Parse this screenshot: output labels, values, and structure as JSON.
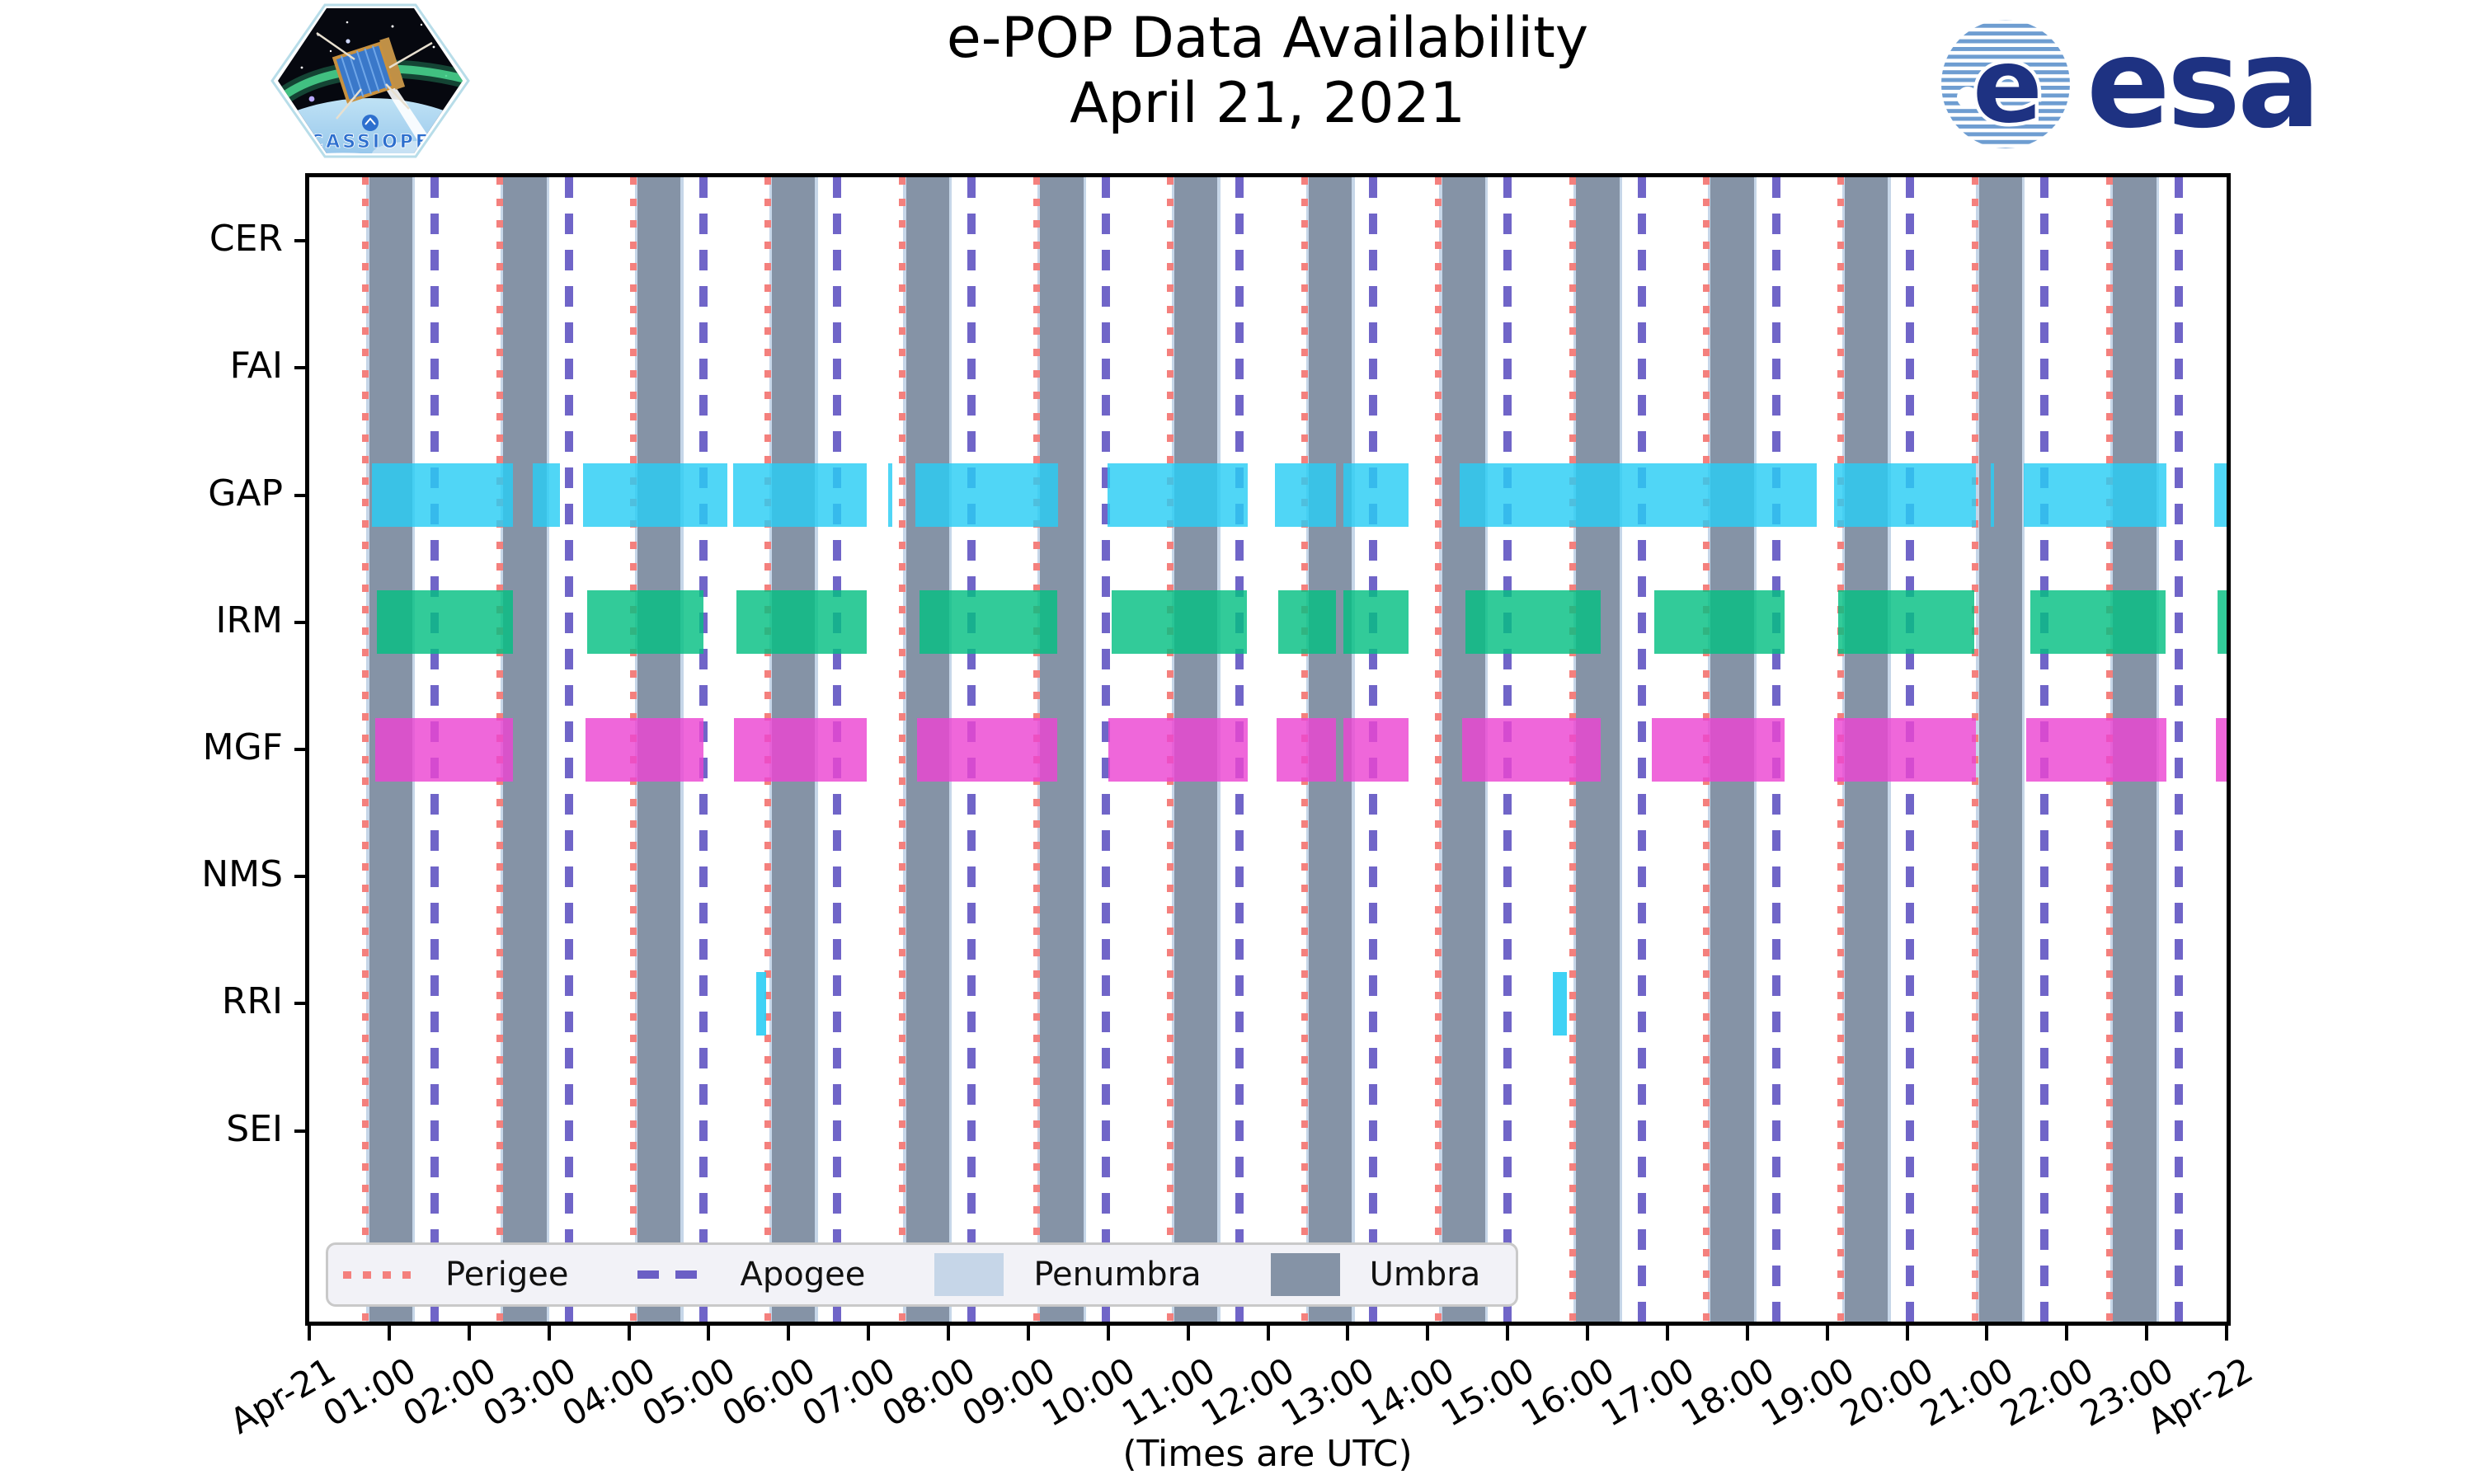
{
  "header": {
    "title_line1": "e-POP Data Availability",
    "title_line2": "April 21, 2021",
    "patch_text": "CASSIOPE",
    "esa_text": "esa"
  },
  "chart_data": {
    "type": "timeline-availability",
    "title": "e-POP Data Availability",
    "subtitle": "April 21, 2021",
    "xlabel": "(Times are UTC)",
    "x_axis_range_hours": [
      0,
      24
    ],
    "x_start_hours": 0,
    "x_end_hours": 24,
    "x_tick_labels": [
      "Apr-21",
      "01:00",
      "02:00",
      "03:00",
      "04:00",
      "05:00",
      "06:00",
      "07:00",
      "08:00",
      "09:00",
      "10:00",
      "11:00",
      "12:00",
      "13:00",
      "14:00",
      "15:00",
      "16:00",
      "17:00",
      "18:00",
      "19:00",
      "20:00",
      "21:00",
      "22:00",
      "23:00",
      "Apr-22"
    ],
    "x_tick_label_rotation_deg": 30,
    "instruments": [
      "CER",
      "FAI",
      "GAP",
      "IRM",
      "MGF",
      "NMS",
      "RRI",
      "SEI"
    ],
    "legend_location": "bottom-left-inside-plot",
    "colors": {
      "umbra": "#8593A6",
      "penumbra": "#C6D6E8",
      "perigee": "#F4807D",
      "apogee": "rgba(100,88,195,0.92)",
      "axis": "#000000",
      "legend_bg": "#F2F2F7"
    },
    "series": [
      {
        "name": "CER",
        "color": "",
        "segments_hours": []
      },
      {
        "name": "FAI",
        "color": "",
        "segments_hours": []
      },
      {
        "name": "GAP",
        "color": "rgba(42,205,244,0.82)",
        "segments_hours": [
          [
            0.78,
            2.55
          ],
          [
            2.8,
            3.14
          ],
          [
            3.43,
            5.23
          ],
          [
            5.31,
            6.98
          ],
          [
            7.25,
            7.3
          ],
          [
            7.59,
            9.37
          ],
          [
            9.99,
            11.75
          ],
          [
            12.09,
            12.85
          ],
          [
            12.94,
            13.76
          ],
          [
            14.4,
            18.87
          ],
          [
            19.09,
            20.86
          ],
          [
            21.05,
            21.09
          ],
          [
            21.46,
            23.25
          ],
          [
            23.84,
            24.0
          ]
        ]
      },
      {
        "name": "IRM",
        "color": "rgba(5,192,130,0.82)",
        "segments_hours": [
          [
            0.85,
            2.55
          ],
          [
            3.48,
            4.93
          ],
          [
            5.35,
            6.98
          ],
          [
            7.64,
            9.36
          ],
          [
            10.04,
            11.74
          ],
          [
            12.13,
            12.85
          ],
          [
            12.94,
            13.76
          ],
          [
            14.47,
            16.17
          ],
          [
            16.84,
            18.47
          ],
          [
            19.14,
            20.84
          ],
          [
            21.54,
            23.24
          ],
          [
            23.89,
            24.0
          ]
        ]
      },
      {
        "name": "MGF",
        "color": "rgba(235,70,210,0.82)",
        "segments_hours": [
          [
            0.83,
            2.55
          ],
          [
            3.46,
            4.93
          ],
          [
            5.32,
            6.98
          ],
          [
            7.61,
            9.36
          ],
          [
            10.0,
            11.75
          ],
          [
            12.11,
            12.85
          ],
          [
            12.94,
            13.76
          ],
          [
            14.43,
            16.17
          ],
          [
            16.81,
            18.47
          ],
          [
            19.09,
            20.86
          ],
          [
            21.49,
            23.25
          ],
          [
            23.87,
            24.0
          ]
        ]
      },
      {
        "name": "NMS",
        "color": "",
        "segments_hours": []
      },
      {
        "name": "RRI",
        "color": "rgba(42,205,244,0.90)",
        "segments_hours": [
          [
            5.59,
            5.72
          ],
          [
            15.57,
            15.74
          ]
        ]
      },
      {
        "name": "SEI",
        "color": "",
        "segments_hours": []
      }
    ],
    "orbit_events": {
      "perigee_hours": [
        0.7,
        2.38,
        4.06,
        5.74,
        7.42,
        9.1,
        10.78,
        12.46,
        14.13,
        15.81,
        17.49,
        19.17,
        20.85,
        22.53
      ],
      "apogee_hours": [
        1.57,
        3.25,
        4.93,
        6.61,
        8.29,
        9.97,
        11.64,
        13.32,
        15.0,
        16.68,
        18.36,
        20.04,
        21.72,
        23.4
      ],
      "umbra_intervals_hours": [
        [
          0.75,
          1.29
        ],
        [
          2.43,
          2.97
        ],
        [
          4.11,
          4.65
        ],
        [
          5.79,
          6.33
        ],
        [
          7.47,
          8.01
        ],
        [
          9.15,
          9.69
        ],
        [
          10.83,
          11.37
        ],
        [
          12.51,
          13.05
        ],
        [
          14.18,
          14.72
        ],
        [
          15.86,
          16.4
        ],
        [
          17.54,
          18.08
        ],
        [
          19.22,
          19.76
        ],
        [
          20.9,
          21.44
        ],
        [
          22.58,
          23.12
        ]
      ],
      "penumbra_pad_hours": 0.035
    },
    "legend": [
      {
        "label": "Perigee",
        "type": "dotted-line",
        "color": "#F4807D"
      },
      {
        "label": "Apogee",
        "type": "dashed-line",
        "color": "#6B5FC5"
      },
      {
        "label": "Penumbra",
        "type": "patch",
        "color": "#C6D6E8"
      },
      {
        "label": "Umbra",
        "type": "patch",
        "color": "#8593A6"
      }
    ]
  }
}
